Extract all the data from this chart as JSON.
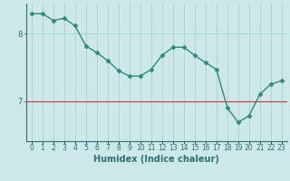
{
  "x": [
    0,
    1,
    2,
    3,
    4,
    5,
    6,
    7,
    8,
    9,
    10,
    11,
    12,
    13,
    14,
    15,
    16,
    17,
    18,
    19,
    20,
    21,
    22,
    23
  ],
  "y": [
    8.3,
    8.3,
    8.2,
    8.23,
    8.12,
    7.82,
    7.72,
    7.6,
    7.45,
    7.37,
    7.37,
    7.47,
    7.68,
    7.8,
    7.8,
    7.68,
    7.57,
    7.47,
    6.9,
    6.68,
    6.78,
    7.1,
    7.25,
    7.3
  ],
  "line_color": "#2e8b7a",
  "marker": "D",
  "marker_size": 2.5,
  "bg_color": "#cce8e8",
  "grid_color": "#aad4d4",
  "xlabel": "Humidex (Indice chaleur)",
  "yticks": [
    7,
    8
  ],
  "ylim": [
    6.4,
    8.45
  ],
  "xlim": [
    -0.5,
    23.5
  ],
  "hline_color": "#cc3333",
  "font_color": "#2e7070",
  "xlabel_fontsize": 7,
  "ylabel_fontsize": 7,
  "tick_fontsize": 6
}
